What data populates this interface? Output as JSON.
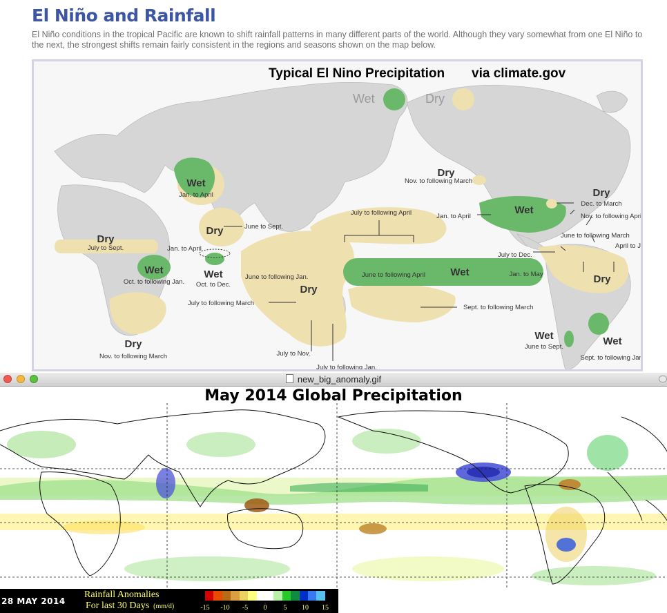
{
  "article": {
    "title": "El Niño and Rainfall",
    "intro": "El Niño conditions in the tropical Pacific are known to shift rainfall patterns in many different parts of the world. Although they vary somewhat from one El Niño to the next, the strongest shifts remain fairly consistent in the regions and seasons shown on the map below."
  },
  "elnino_map": {
    "title": "Typical El Nino Precipitation",
    "source": "via climate.gov",
    "legend": [
      {
        "label": "Wet",
        "color": "#6ab86a"
      },
      {
        "label": "Dry",
        "color": "#efe0b0"
      }
    ],
    "labels": {
      "wet_europe": "Wet",
      "wet_europe_season": "Jan. to April",
      "dry_mideast": "Dry",
      "dry_mideast_season": "June to Sept.",
      "dry_westafrica": "Dry",
      "dry_westafrica_season": "July to Sept.",
      "jan_april": "Jan. to April",
      "wet_eafrica": "Wet",
      "wet_eafrica_season": "Oct. to following Jan.",
      "wet_india": "Wet",
      "wet_india_season": "Oct. to Dec.",
      "dry_safrica": "Dry",
      "dry_safrica_season": "Nov. to following March",
      "dry_indo_season_1": "June to following Jan.",
      "dry_indo": "Dry",
      "dry_indo_season_2": "July to following March",
      "july_nov": "July to Nov.",
      "july_jan": "July to following Jan.",
      "july_april": "July to following April",
      "wet_pacific_left": "June to following April",
      "wet_pacific": "Wet",
      "wet_pacific_right": "Jan. to May",
      "sept_march": "Sept. to following March",
      "dry_alaska": "Dry",
      "dry_alaska_season": "Nov. to following March",
      "jan_april_us": "Jan. to April",
      "wet_us": "Wet",
      "dry_greatlakes": "Dry",
      "dry_greatlakes_season": "Dec. to March",
      "nov_april": "Nov. to following April",
      "june_march": "June to following March",
      "july_dec": "July to Dec.",
      "april_june": "April to June",
      "dry_brazil": "Dry",
      "wet_chile": "Wet",
      "wet_chile_season": "June to Sept.",
      "wet_argentina": "Wet",
      "wet_argentina_season": "Sept. to following Jan."
    }
  },
  "window": {
    "title": "new_big_anomaly.gif"
  },
  "anomaly_map": {
    "title": "May 2014 Global Precipitation",
    "date": "28 MAY 2014",
    "legend_title": "Rainfall Anomalies",
    "legend_subtitle": "For last 30 Days",
    "units": "(mm/d)",
    "scale_ticks": [
      "-15",
      "-10",
      "-5",
      "0",
      "5",
      "10",
      "15"
    ],
    "scale_colors": [
      "#d40000",
      "#e84a00",
      "#b86a18",
      "#d8a040",
      "#eed060",
      "#ffff80",
      "#ffffff",
      "#ffffff",
      "#b8f0a8",
      "#28c828",
      "#108c40",
      "#0030c8",
      "#3878f0",
      "#58c0f0"
    ]
  }
}
